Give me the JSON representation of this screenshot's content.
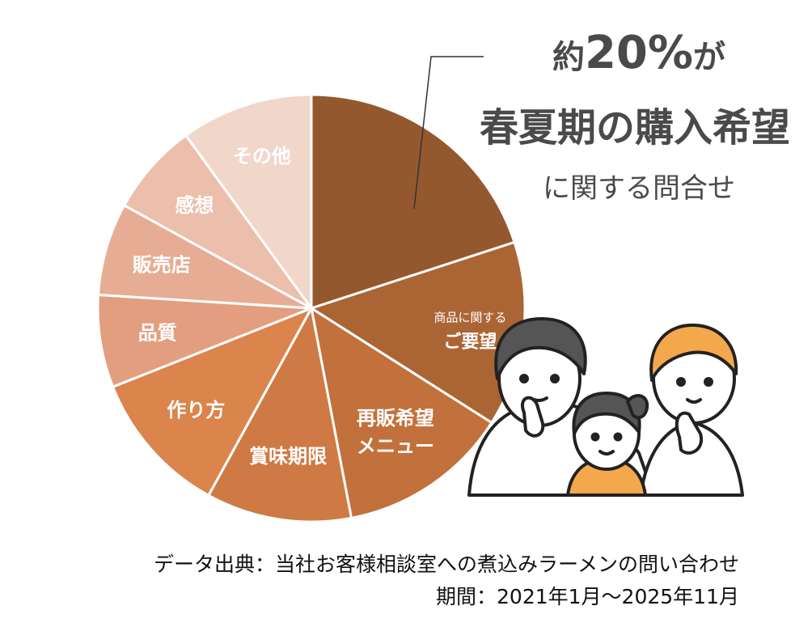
{
  "chart_data": {
    "type": "pie",
    "title": "",
    "categories": [
      "春夏期の購入希望に関する問合せ",
      "商品に関するご要望",
      "再販希望メニュー",
      "賞味期限",
      "作り方",
      "品質",
      "販売店",
      "感想",
      "その他"
    ],
    "values": [
      20,
      14,
      13,
      11,
      11,
      7,
      7,
      7,
      10
    ],
    "colors": [
      "#94582e",
      "#ab6535",
      "#c2713c",
      "#cf7a44",
      "#db844c",
      "#e39e80",
      "#e7ad94",
      "#ebbfac",
      "#f1d6ca"
    ],
    "slice_labels": [
      {
        "lines": [
          ""
        ]
      },
      {
        "lines": [
          "商品に関する",
          "ご要望"
        ]
      },
      {
        "lines": [
          "再販希望",
          "メニュー"
        ]
      },
      {
        "lines": [
          "賞味期限"
        ]
      },
      {
        "lines": [
          "作り方"
        ]
      },
      {
        "lines": [
          "品質"
        ]
      },
      {
        "lines": [
          "販売店"
        ]
      },
      {
        "lines": [
          "感想"
        ]
      },
      {
        "lines": [
          "その他"
        ]
      }
    ]
  },
  "callout": {
    "prefix": "約",
    "percent": "20%",
    "suffix": "が",
    "headline": "春夏期の購入希望",
    "sub": "に関する問合せ"
  },
  "footer": {
    "source": "データ出典：当社お客様相談室への煮込みラーメンの問い合わせ",
    "period": "期間：2021年1月～2025年11月"
  }
}
